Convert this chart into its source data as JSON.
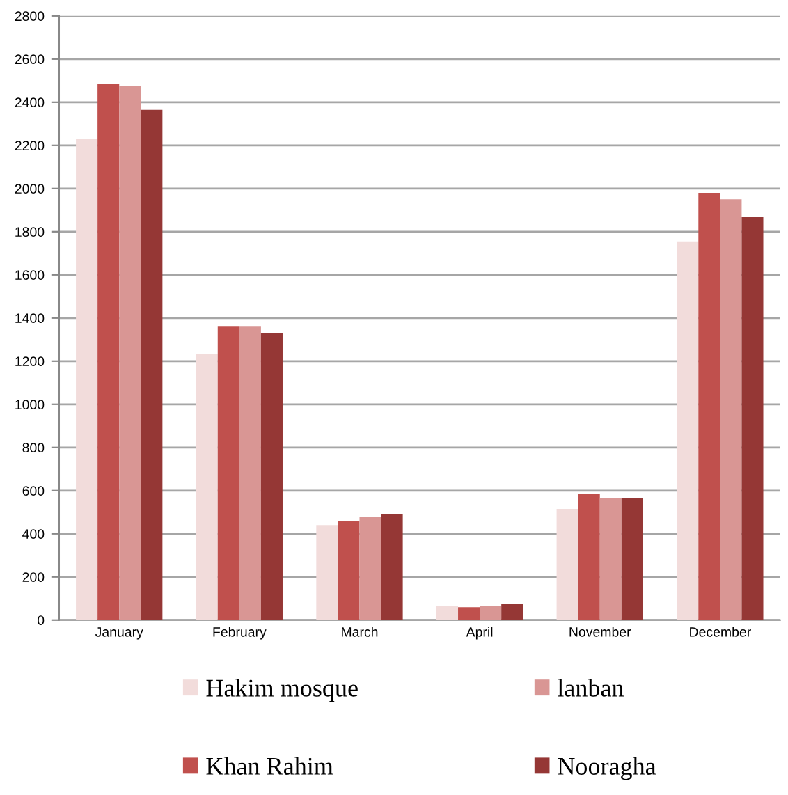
{
  "chart_data": {
    "type": "bar",
    "categories": [
      "January",
      "February",
      "March",
      "April",
      "November",
      "December"
    ],
    "series": [
      {
        "name": "Hakim mosque",
        "color": "#f2dcdb",
        "values": [
          2230,
          1235,
          440,
          65,
          515,
          1755
        ]
      },
      {
        "name": "Khan Rahim",
        "color": "#c0504d",
        "values": [
          2485,
          1360,
          460,
          60,
          585,
          1980
        ]
      },
      {
        "name": "lanban",
        "color": "#d99694",
        "values": [
          2475,
          1360,
          480,
          65,
          565,
          1950
        ]
      },
      {
        "name": "Nooragha",
        "color": "#953735",
        "values": [
          2365,
          1330,
          490,
          75,
          565,
          1870
        ]
      }
    ],
    "ylim": [
      0,
      2800
    ],
    "yticks": [
      0,
      200,
      400,
      600,
      800,
      1000,
      1200,
      1400,
      1600,
      1800,
      2000,
      2200,
      2400,
      2600,
      2800
    ],
    "grid": "y",
    "legend": "bottom"
  }
}
